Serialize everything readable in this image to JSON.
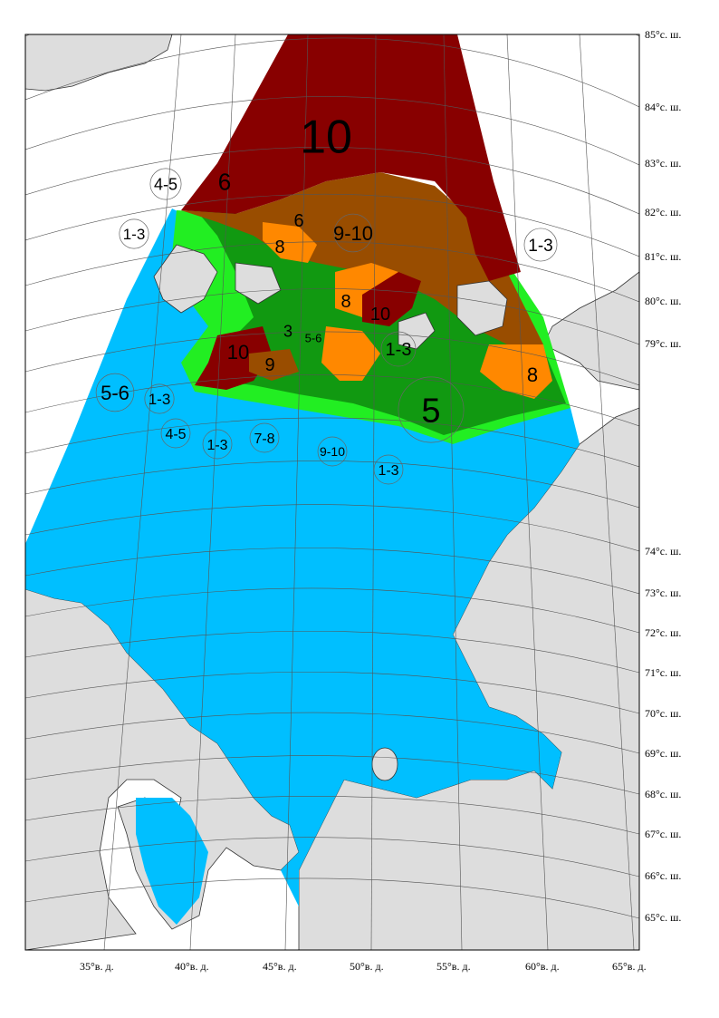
{
  "colors": {
    "water": "#00bfff",
    "land": "#dddddd",
    "lightgreen": "#22ee22",
    "green": "#119911",
    "brown": "#994d00",
    "orange": "#ff8800",
    "darkred": "#880000"
  },
  "lat_labels": [
    "85°с. ш.",
    "84°с. ш.",
    "83°с. ш.",
    "82°с. ш.",
    "81°с. ш.",
    "80°с. ш.",
    "79°с. ш.",
    "74°с. ш.",
    "73°с. ш.",
    "72°с. ш.",
    "71°с. ш.",
    "70°с. ш.",
    "69°с. ш.",
    "68°с. ш.",
    "67°с. ш.",
    "66°с. ш.",
    "65°с. ш."
  ],
  "lon_labels": [
    "35°в. д.",
    "40°в. д.",
    "45°в. д.",
    "50°в. д.",
    "55°в. д.",
    "60°в. д.",
    "65°в. д."
  ],
  "zones": [
    {
      "text": "10",
      "circled": false,
      "size": 52
    },
    {
      "text": "6",
      "circled": false,
      "size": 26
    },
    {
      "text": "4-5",
      "circled": true,
      "size": 18
    },
    {
      "text": "1-3",
      "circled": true,
      "size": 17
    },
    {
      "text": "6",
      "circled": false,
      "size": 20
    },
    {
      "text": "9-10",
      "circled": true,
      "size": 22
    },
    {
      "text": "8",
      "circled": false,
      "size": 20
    },
    {
      "text": "1-3",
      "circled": true,
      "size": 19
    },
    {
      "text": "8",
      "circled": false,
      "size": 20
    },
    {
      "text": "10",
      "circled": false,
      "size": 20
    },
    {
      "text": "3",
      "circled": false,
      "size": 18
    },
    {
      "text": "5-6",
      "circled": false,
      "size": 13
    },
    {
      "text": "10",
      "circled": false,
      "size": 22
    },
    {
      "text": "9",
      "circled": false,
      "size": 20
    },
    {
      "text": "1-3",
      "circled": true,
      "size": 20
    },
    {
      "text": "8",
      "circled": false,
      "size": 22
    },
    {
      "text": "5-6",
      "circled": true,
      "size": 22
    },
    {
      "text": "1-3",
      "circled": true,
      "size": 17
    },
    {
      "text": "5",
      "circled": true,
      "size": 38
    },
    {
      "text": "4-5",
      "circled": true,
      "size": 16
    },
    {
      "text": "1-3",
      "circled": true,
      "size": 16
    },
    {
      "text": "7-8",
      "circled": true,
      "size": 16
    },
    {
      "text": "9-10",
      "circled": true,
      "size": 14
    },
    {
      "text": "1-3",
      "circled": true,
      "size": 16
    }
  ]
}
